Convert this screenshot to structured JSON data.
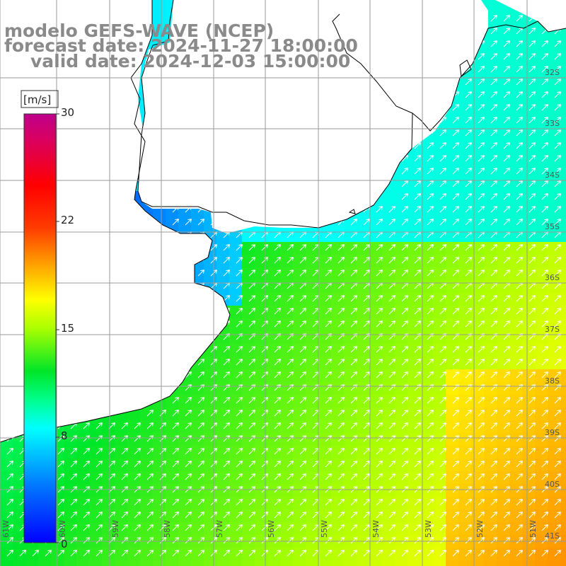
{
  "header": {
    "line1": "modelo GEFS-WAVE (NCEP)",
    "line2": "forecast date: 2024-11-27 18:00:00",
    "line3": "valid date: 2024-12-03 15:00:00"
  },
  "colorbar": {
    "unit": "[m/s]",
    "ticks": [
      "30",
      "22",
      "15",
      "8",
      "0"
    ],
    "min": 0,
    "max": 30,
    "colors": [
      "#0000ff",
      "#00aaff",
      "#00ffff",
      "#00ff55",
      "#00cc00",
      "#aaff00",
      "#ffff00",
      "#ffaa00",
      "#ff5500",
      "#ff0000",
      "#dd0066",
      "#bb0099"
    ]
  },
  "axes": {
    "lat_labels": [
      "32S",
      "33S",
      "34S",
      "35S",
      "36S",
      "37S",
      "38S",
      "39S",
      "40S",
      "41S"
    ],
    "lon_labels": [
      "61W",
      "60W",
      "59W",
      "58W",
      "57W",
      "56W",
      "55W",
      "54W",
      "53W",
      "52W",
      "51W"
    ]
  },
  "field": {
    "variable": "wind speed",
    "wind_direction": "from SW, towards NE",
    "land_color": "#ffffff",
    "coast_color": "#000000",
    "grid_color": "#9a9a9a",
    "arrow_color": "#ffffff"
  }
}
